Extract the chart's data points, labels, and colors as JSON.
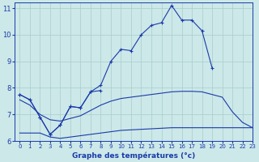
{
  "title": "Graphe des températures (°c)",
  "bg_color": "#cce8e8",
  "grid_color": "#aacccc",
  "line_color": "#1a3aaa",
  "xlim": [
    -0.5,
    23
  ],
  "ylim": [
    6,
    11.2
  ],
  "yticks": [
    6,
    7,
    8,
    9,
    10,
    11
  ],
  "xticks": [
    0,
    1,
    2,
    3,
    4,
    5,
    6,
    7,
    8,
    9,
    10,
    11,
    12,
    13,
    14,
    15,
    16,
    17,
    18,
    19,
    20,
    21,
    22,
    23
  ],
  "curve1_x": [
    0,
    1,
    2,
    3,
    4,
    5,
    6,
    7,
    8,
    9,
    10,
    11,
    12,
    13,
    14,
    15,
    16,
    17,
    18,
    19
  ],
  "curve1_y": [
    7.75,
    7.55,
    6.9,
    6.25,
    6.6,
    7.3,
    7.25,
    7.85,
    8.1,
    9.0,
    9.45,
    9.4,
    10.0,
    10.35,
    10.45,
    11.1,
    10.55,
    10.55,
    10.15,
    8.75
  ],
  "curve2_x": [
    0,
    1,
    2,
    3,
    4,
    5,
    6,
    7,
    8
  ],
  "curve2_y": [
    7.75,
    7.55,
    6.9,
    6.25,
    6.6,
    7.3,
    7.25,
    7.85,
    7.9
  ],
  "curve3_x": [
    0,
    1,
    2,
    3,
    4,
    5,
    6,
    7,
    8,
    9,
    10,
    11,
    12,
    13,
    14,
    15,
    16,
    17,
    18,
    19,
    20,
    21,
    22,
    23
  ],
  "curve3_y": [
    7.55,
    7.35,
    7.0,
    6.8,
    6.75,
    6.85,
    6.95,
    7.15,
    7.35,
    7.5,
    7.6,
    7.65,
    7.7,
    7.75,
    7.8,
    7.85,
    7.87,
    7.87,
    7.85,
    7.75,
    7.65,
    7.1,
    6.7,
    6.5
  ],
  "curve4_x": [
    0,
    1,
    2,
    3,
    4,
    5,
    6,
    7,
    8,
    9,
    10,
    11,
    12,
    13,
    14,
    15,
    16,
    17,
    18,
    19,
    20,
    21,
    22,
    23
  ],
  "curve4_y": [
    6.3,
    6.3,
    6.3,
    6.15,
    6.1,
    6.15,
    6.2,
    6.25,
    6.3,
    6.35,
    6.4,
    6.42,
    6.44,
    6.46,
    6.48,
    6.5,
    6.5,
    6.5,
    6.5,
    6.5,
    6.5,
    6.5,
    6.5,
    6.5
  ]
}
